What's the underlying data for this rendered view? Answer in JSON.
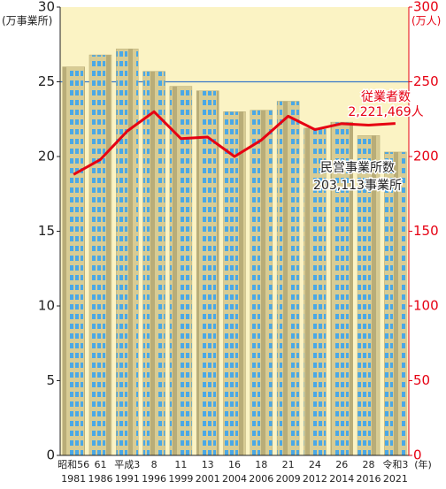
{
  "chart_data": {
    "type": "bar",
    "y_label": "(万事業所)",
    "y2_label": "(万人)",
    "x_unit": "(年)",
    "categories": [
      "昭和56",
      "61",
      "平成3",
      "8",
      "11",
      "13",
      "16",
      "18",
      "21",
      "24",
      "26",
      "28",
      "令和3"
    ],
    "x_sublabels": [
      "1981",
      "1986",
      "1991",
      "1996",
      "1999",
      "2001",
      "2004",
      "2006",
      "2009",
      "2012",
      "2014",
      "2016",
      "2021"
    ],
    "series": [
      {
        "name": "民営事業所数",
        "type": "bar",
        "color": "#d8cc94",
        "window_color": "#4aa8e6",
        "values": [
          26.0,
          26.8,
          27.2,
          25.7,
          24.7,
          24.4,
          23.0,
          23.1,
          23.7,
          21.9,
          22.3,
          21.4,
          20.3
        ]
      },
      {
        "name": "従業者数",
        "type": "line",
        "axis": "y2",
        "color": "#e60012",
        "values": [
          188,
          198,
          217,
          230,
          212,
          213,
          200,
          211,
          227,
          218,
          222,
          221,
          222.1
        ]
      }
    ],
    "annotations": [
      {
        "text": "従業者数",
        "color": "#e60012"
      },
      {
        "text": "2,221,469人",
        "color": "#e60012"
      },
      {
        "text": "民営事業所数",
        "color": "#222"
      },
      {
        "text": "203,113事業所",
        "color": "#222"
      }
    ],
    "ylim": [
      0,
      30
    ],
    "yticks": [
      0,
      5,
      10,
      15,
      20,
      25,
      30
    ],
    "y2lim": [
      0,
      300
    ],
    "y2ticks": [
      0,
      50,
      100,
      150,
      200,
      250,
      300
    ],
    "reference_line": 25,
    "reference_color": "#3a78c8",
    "background": "#fbf3c4"
  }
}
